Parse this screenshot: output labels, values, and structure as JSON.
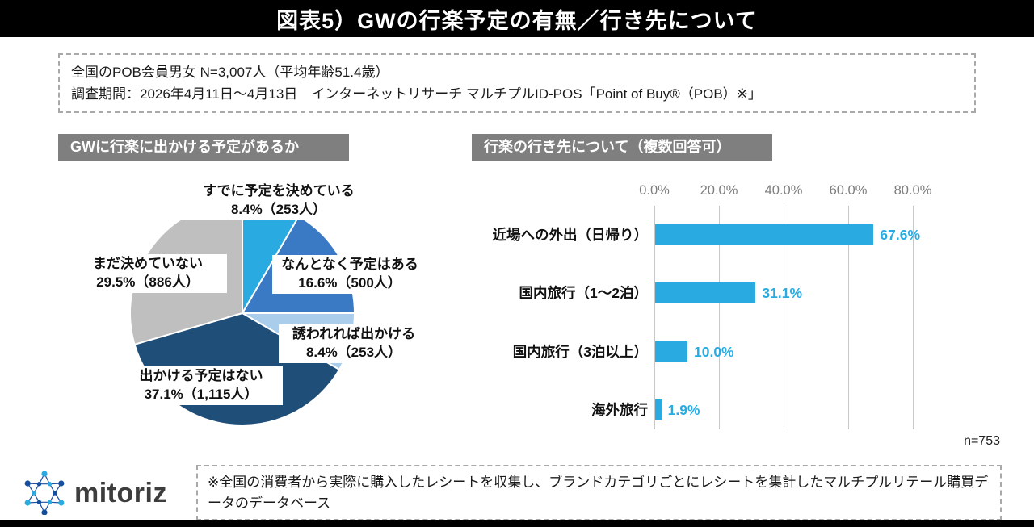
{
  "header": {
    "title": "図表5）GWの行楽予定の有無／行き先について"
  },
  "survey_info": {
    "line1": "全国のPOB会員男女 N=3,007人（平均年齢51.4歳）",
    "line2": "調査期間：2026年4月11日〜4月13日　インターネットリサーチ マルチプルID-POS「Point of Buy®（POB）※」"
  },
  "logo": {
    "text": "mitoriz"
  },
  "footnote": {
    "text": "※全国の消費者から実際に購入したレシートを収集し、ブランドカテゴリごとにレシートを集計したマルチプルリテール購買データのデータベース"
  },
  "chart_data": [
    {
      "type": "pie",
      "title": "GWに行楽に出かける予定があるか",
      "labels": [
        "すでに予定を決めている",
        "なんとなく予定はある",
        "誘われれば出かける",
        "出かける予定はない",
        "まだ決めていない"
      ],
      "values": [
        8.4,
        16.6,
        8.4,
        37.1,
        29.5
      ],
      "counts": [
        253,
        500,
        253,
        1115,
        886
      ],
      "label_lines": [
        {
          "name": "すでに予定を決めている",
          "value": "8.4%（253人）"
        },
        {
          "name": "なんとなく予定はある",
          "value": "16.6%（500人）"
        },
        {
          "name": "誘われれば出かける",
          "value": "8.4%（253人）"
        },
        {
          "name": "出かける予定はない",
          "value": "37.1%（1,115人）"
        },
        {
          "name": "まだ決めていない",
          "value": "29.5%（886人）"
        }
      ],
      "colors": [
        "#29ABE2",
        "#3A79C3",
        "#A9CDEA",
        "#1F4E79",
        "#BFBFBF"
      ],
      "start_angle": "top",
      "direction": "clockwise"
    },
    {
      "type": "bar",
      "orientation": "horizontal",
      "title": "行楽の行き先について（複数回答可）",
      "categories": [
        "近場への外出（日帰り）",
        "国内旅行（1〜2泊）",
        "国内旅行（3泊以上）",
        "海外旅行"
      ],
      "values": [
        67.6,
        31.1,
        10.0,
        1.9
      ],
      "value_labels": [
        "67.6%",
        "31.1%",
        "10.0%",
        "1.9%"
      ],
      "x_ticks": [
        0,
        20,
        40,
        60,
        80
      ],
      "x_tick_labels": [
        "0.0%",
        "20.0%",
        "40.0%",
        "60.0%",
        "80.0%"
      ],
      "xlim": [
        0,
        86
      ],
      "grid": true,
      "bar_color": "#29ABE2",
      "sample_label": "n=753"
    }
  ]
}
